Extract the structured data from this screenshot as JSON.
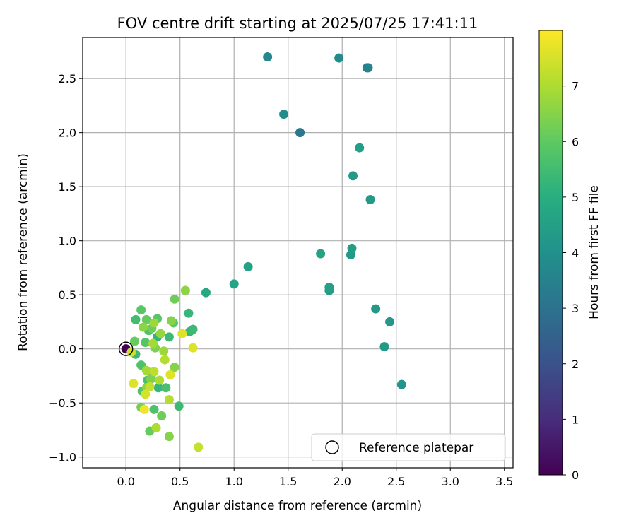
{
  "chart_data": {
    "type": "scatter",
    "title": "FOV centre drift starting at 2025/07/25 17:41:11",
    "xlabel": "Angular distance from reference (arcmin)",
    "ylabel": "Rotation from reference (arcmin)",
    "xlim": [
      -0.4,
      3.58
    ],
    "ylim": [
      -1.1,
      2.88
    ],
    "xticks": [
      0.0,
      0.5,
      1.0,
      1.5,
      2.0,
      2.5,
      3.0,
      3.5
    ],
    "xtick_labels": [
      "0.0",
      "0.5",
      "1.0",
      "1.5",
      "2.0",
      "2.5",
      "3.0",
      "3.5"
    ],
    "yticks": [
      -1.0,
      -0.5,
      0.0,
      0.5,
      1.0,
      1.5,
      2.0,
      2.5
    ],
    "ytick_labels": [
      "−1.0",
      "−0.5",
      "0.0",
      "0.5",
      "1.0",
      "1.5",
      "2.0",
      "2.5"
    ],
    "grid": true,
    "colormap": "viridis",
    "colorbar": {
      "label": "Hours from first FF file",
      "range": [
        0,
        8
      ],
      "ticks": [
        0,
        1,
        2,
        3,
        4,
        5,
        6,
        7
      ],
      "tick_labels": [
        "0",
        "1",
        "2",
        "3",
        "4",
        "5",
        "6",
        "7"
      ]
    },
    "legend": {
      "position": "lower-right",
      "entries": [
        {
          "label": "Reference platepar",
          "marker": "open-circle"
        }
      ]
    },
    "reference_point": {
      "x": 0.0,
      "y": 0.0
    },
    "points": [
      {
        "x": 0.0,
        "y": 0.0,
        "h": 0.0
      },
      {
        "x": 1.31,
        "y": 2.7,
        "h": 3.7
      },
      {
        "x": 1.97,
        "y": 2.69,
        "h": 3.8
      },
      {
        "x": 2.23,
        "y": 2.6,
        "h": 3.3
      },
      {
        "x": 2.24,
        "y": 2.6,
        "h": 3.5
      },
      {
        "x": 1.46,
        "y": 2.17,
        "h": 3.9
      },
      {
        "x": 1.61,
        "y": 2.0,
        "h": 3.2
      },
      {
        "x": 2.16,
        "y": 1.86,
        "h": 4.4
      },
      {
        "x": 2.1,
        "y": 1.6,
        "h": 4.3
      },
      {
        "x": 2.26,
        "y": 1.38,
        "h": 4.3
      },
      {
        "x": 2.09,
        "y": 0.93,
        "h": 4.4
      },
      {
        "x": 2.08,
        "y": 0.87,
        "h": 4.3
      },
      {
        "x": 1.8,
        "y": 0.88,
        "h": 4.6
      },
      {
        "x": 1.88,
        "y": 0.57,
        "h": 4.5
      },
      {
        "x": 1.88,
        "y": 0.54,
        "h": 4.4
      },
      {
        "x": 2.31,
        "y": 0.37,
        "h": 4.3
      },
      {
        "x": 2.44,
        "y": 0.25,
        "h": 4.2
      },
      {
        "x": 2.39,
        "y": 0.02,
        "h": 4.3
      },
      {
        "x": 2.55,
        "y": -0.33,
        "h": 4.1
      },
      {
        "x": 1.13,
        "y": 0.76,
        "h": 4.6
      },
      {
        "x": 1.0,
        "y": 0.6,
        "h": 4.7
      },
      {
        "x": 0.74,
        "y": 0.52,
        "h": 4.8
      },
      {
        "x": 0.55,
        "y": 0.54,
        "h": 6.6
      },
      {
        "x": 0.45,
        "y": 0.46,
        "h": 6.2
      },
      {
        "x": 0.58,
        "y": 0.33,
        "h": 5.3
      },
      {
        "x": 0.14,
        "y": 0.36,
        "h": 5.9
      },
      {
        "x": 0.09,
        "y": 0.27,
        "h": 5.5
      },
      {
        "x": 0.19,
        "y": 0.27,
        "h": 6.1
      },
      {
        "x": 0.29,
        "y": 0.28,
        "h": 5.9
      },
      {
        "x": 0.26,
        "y": 0.24,
        "h": 6.8
      },
      {
        "x": 0.42,
        "y": 0.26,
        "h": 6.5
      },
      {
        "x": 0.44,
        "y": 0.24,
        "h": 5.9
      },
      {
        "x": 0.16,
        "y": 0.2,
        "h": 6.6
      },
      {
        "x": 0.21,
        "y": 0.17,
        "h": 5.7
      },
      {
        "x": 0.24,
        "y": 0.19,
        "h": 6.2
      },
      {
        "x": 0.62,
        "y": 0.18,
        "h": 5.4
      },
      {
        "x": 0.59,
        "y": 0.16,
        "h": 5.3
      },
      {
        "x": 0.52,
        "y": 0.14,
        "h": 7.6
      },
      {
        "x": 0.32,
        "y": 0.14,
        "h": 6.7
      },
      {
        "x": 0.29,
        "y": 0.11,
        "h": 5.2
      },
      {
        "x": 0.4,
        "y": 0.11,
        "h": 5.4
      },
      {
        "x": 0.08,
        "y": 0.07,
        "h": 6.1
      },
      {
        "x": 0.18,
        "y": 0.06,
        "h": 5.8
      },
      {
        "x": 0.25,
        "y": 0.05,
        "h": 6.9
      },
      {
        "x": 0.27,
        "y": 0.01,
        "h": 6.4
      },
      {
        "x": 0.62,
        "y": 0.01,
        "h": 7.6
      },
      {
        "x": 0.35,
        "y": -0.02,
        "h": 6.8
      },
      {
        "x": 0.05,
        "y": -0.03,
        "h": 7.4
      },
      {
        "x": 0.09,
        "y": -0.05,
        "h": 5.4
      },
      {
        "x": 0.36,
        "y": -0.1,
        "h": 7.1
      },
      {
        "x": 0.14,
        "y": -0.15,
        "h": 5.7
      },
      {
        "x": 0.45,
        "y": -0.17,
        "h": 6.5
      },
      {
        "x": 0.19,
        "y": -0.2,
        "h": 6.9
      },
      {
        "x": 0.26,
        "y": -0.21,
        "h": 7.2
      },
      {
        "x": 0.24,
        "y": -0.23,
        "h": 5.8
      },
      {
        "x": 0.41,
        "y": -0.24,
        "h": 7.6
      },
      {
        "x": 0.2,
        "y": -0.29,
        "h": 5.6
      },
      {
        "x": 0.23,
        "y": -0.28,
        "h": 6.4
      },
      {
        "x": 0.31,
        "y": -0.29,
        "h": 7.0
      },
      {
        "x": 0.07,
        "y": -0.32,
        "h": 7.6
      },
      {
        "x": 0.22,
        "y": -0.35,
        "h": 7.3
      },
      {
        "x": 0.19,
        "y": -0.36,
        "h": 6.6
      },
      {
        "x": 0.3,
        "y": -0.36,
        "h": 5.3
      },
      {
        "x": 0.37,
        "y": -0.36,
        "h": 5.6
      },
      {
        "x": 0.15,
        "y": -0.39,
        "h": 5.7
      },
      {
        "x": 0.18,
        "y": -0.42,
        "h": 7.5
      },
      {
        "x": 0.4,
        "y": -0.47,
        "h": 7.1
      },
      {
        "x": 0.49,
        "y": -0.53,
        "h": 5.4
      },
      {
        "x": 0.14,
        "y": -0.54,
        "h": 6.3
      },
      {
        "x": 0.17,
        "y": -0.56,
        "h": 7.8
      },
      {
        "x": 0.26,
        "y": -0.56,
        "h": 5.7
      },
      {
        "x": 0.33,
        "y": -0.62,
        "h": 6.2
      },
      {
        "x": 0.28,
        "y": -0.73,
        "h": 7.0
      },
      {
        "x": 0.22,
        "y": -0.76,
        "h": 6.1
      },
      {
        "x": 0.4,
        "y": -0.81,
        "h": 6.5
      },
      {
        "x": 0.67,
        "y": -0.91,
        "h": 7.3
      }
    ]
  }
}
